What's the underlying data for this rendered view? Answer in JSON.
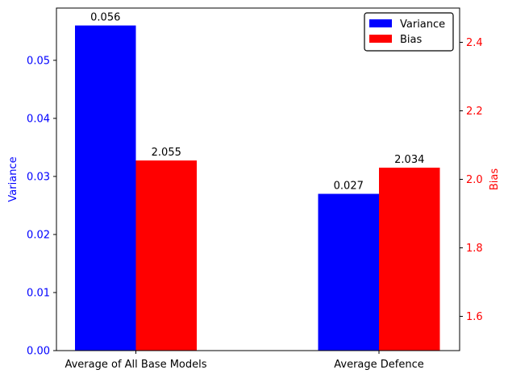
{
  "chart_data": {
    "type": "bar",
    "categories": [
      "Average of All Base Models",
      "Average Defence"
    ],
    "series": [
      {
        "name": "Variance",
        "axis": "left",
        "color": "#0000ff",
        "values": [
          0.056,
          0.027
        ],
        "labels": [
          "0.056",
          "0.027"
        ]
      },
      {
        "name": "Bias",
        "axis": "right",
        "color": "#ff0000",
        "values": [
          2.055,
          2.034
        ],
        "labels": [
          "2.055",
          "2.034"
        ]
      }
    ],
    "left_axis": {
      "label": "Variance",
      "color": "#0000ff",
      "ylim": [
        0,
        0.059
      ],
      "ticks": [
        0,
        0.01,
        0.02,
        0.03,
        0.04,
        0.05
      ],
      "tick_labels": [
        "0.00",
        "0.01",
        "0.02",
        "0.03",
        "0.04",
        "0.05"
      ]
    },
    "right_axis": {
      "label": "Bias",
      "color": "#ff0000",
      "ylim": [
        1.5,
        2.5
      ],
      "ticks": [
        1.6,
        1.8,
        2.0,
        2.2,
        2.4
      ],
      "tick_labels": [
        "1.6",
        "1.8",
        "2.0",
        "2.2",
        "2.4"
      ]
    },
    "legend": {
      "position": "top-right",
      "entries": [
        "Variance",
        "Bias"
      ]
    },
    "title": "",
    "xlabel": ""
  }
}
